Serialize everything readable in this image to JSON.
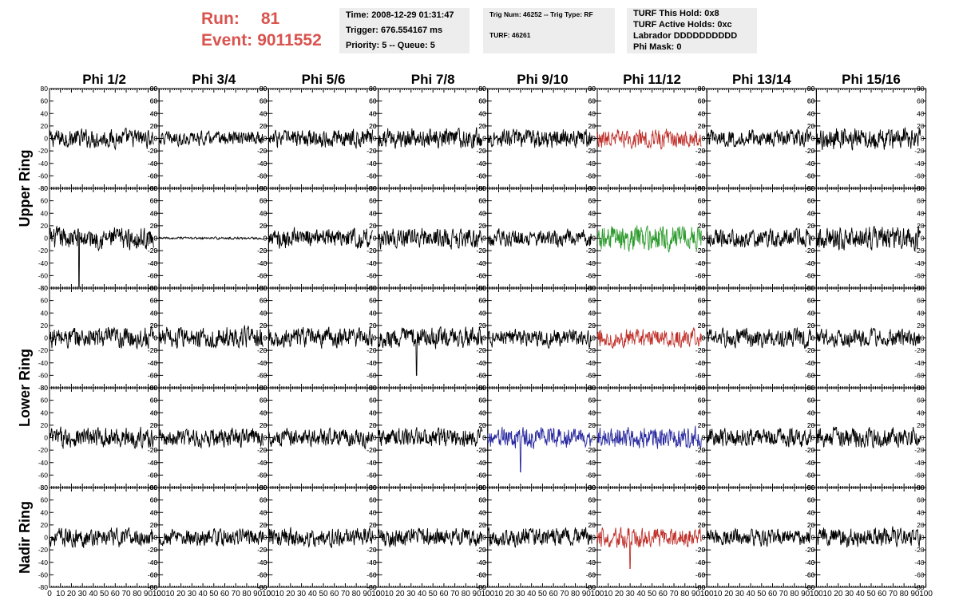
{
  "header": {
    "run_label": "Run:",
    "run_value": "81",
    "event_label": "Event:",
    "event_value": "9011552",
    "color": "#d9534f"
  },
  "info_boxes": {
    "time": "Time: 2008-12-29 01:31:47",
    "trigger": "Trigger: 676.554167 ms",
    "priority": "Priority: 5 -- Queue: 5",
    "trig_num": "Trig Num: 46252 -- Trig Type: RF",
    "turf": "TURF: 46261",
    "turf_this_hold": "TURF This Hold: 0x8",
    "turf_active_holds": "TURF Active Holds: 0xc",
    "labrador": "Labrador DDDDDDDDDD",
    "phi_mask": "Phi Mask: 0"
  },
  "chart_data": {
    "type": "line",
    "columns": [
      "Phi 1/2",
      "Phi 3/4",
      "Phi 5/6",
      "Phi 7/8",
      "Phi 9/10",
      "Phi 11/12",
      "Phi 13/14",
      "Phi 15/16"
    ],
    "row_groups": [
      {
        "label": "Upper Ring",
        "rows": [
          0,
          1
        ]
      },
      {
        "label": "Lower Ring",
        "rows": [
          2,
          3
        ]
      },
      {
        "label": "Nadir Ring",
        "rows": [
          4
        ]
      }
    ],
    "ylim": [
      -80,
      80
    ],
    "yticks": [
      -80,
      -60,
      -40,
      -20,
      0,
      20,
      40,
      60,
      80
    ],
    "xlim": [
      0,
      100
    ],
    "xticks": [
      0,
      10,
      20,
      30,
      40,
      50,
      60,
      70,
      80,
      90,
      100
    ],
    "x_tick_text": [
      "0",
      "10",
      "20",
      "30",
      "40",
      "50",
      "60",
      "70",
      "80",
      "90",
      "100"
    ],
    "samples_per_trace": 260,
    "trace_x_range": [
      0,
      95
    ],
    "colors": {
      "default": "#000000",
      "red": "#c0302a",
      "green": "#2a9a2a",
      "blue": "#2a2aa0"
    },
    "panels": [
      [
        {
          "c": "default",
          "a": 12
        },
        {
          "c": "default",
          "a": 9
        },
        {
          "c": "default",
          "a": 12
        },
        {
          "c": "default",
          "a": 13
        },
        {
          "c": "default",
          "a": 12
        },
        {
          "c": "red",
          "a": 12
        },
        {
          "c": "default",
          "a": 11
        },
        {
          "c": "default",
          "a": 14
        }
      ],
      [
        {
          "c": "default",
          "a": 14,
          "spike": [
            27,
            -78
          ]
        },
        {
          "c": "default",
          "a": 1.5
        },
        {
          "c": "default",
          "a": 13
        },
        {
          "c": "default",
          "a": 13
        },
        {
          "c": "default",
          "a": 11
        },
        {
          "c": "green",
          "a": 16
        },
        {
          "c": "default",
          "a": 12
        },
        {
          "c": "default",
          "a": 15
        }
      ],
      [
        {
          "c": "default",
          "a": 14
        },
        {
          "c": "default",
          "a": 14
        },
        {
          "c": "default",
          "a": 13
        },
        {
          "c": "default",
          "a": 13,
          "spike": [
            35,
            -60
          ]
        },
        {
          "c": "default",
          "a": 11
        },
        {
          "c": "red",
          "a": 12
        },
        {
          "c": "default",
          "a": 12
        },
        {
          "c": "default",
          "a": 11
        }
      ],
      [
        {
          "c": "default",
          "a": 13
        },
        {
          "c": "default",
          "a": 12
        },
        {
          "c": "default",
          "a": 12
        },
        {
          "c": "default",
          "a": 12
        },
        {
          "c": "blue",
          "a": 13,
          "spike": [
            30,
            -55
          ]
        },
        {
          "c": "blue",
          "a": 14
        },
        {
          "c": "default",
          "a": 12
        },
        {
          "c": "default",
          "a": 13
        }
      ],
      [
        {
          "c": "default",
          "a": 12
        },
        {
          "c": "default",
          "a": 11
        },
        {
          "c": "default",
          "a": 12
        },
        {
          "c": "default",
          "a": 12
        },
        {
          "c": "default",
          "a": 12
        },
        {
          "c": "red",
          "a": 13,
          "spike": [
            30,
            -50
          ]
        },
        {
          "c": "default",
          "a": 11
        },
        {
          "c": "default",
          "a": 13
        }
      ]
    ]
  }
}
